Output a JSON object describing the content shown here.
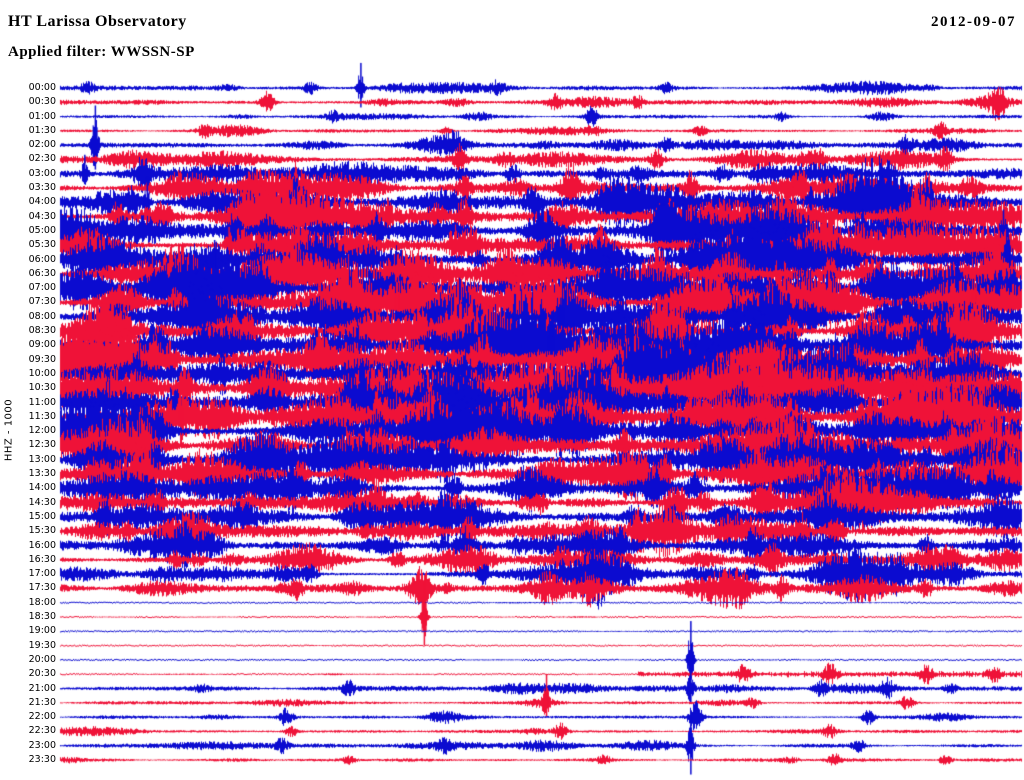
{
  "header": {
    "station_title": "HT Larissa Observatory",
    "date": "2012-09-07",
    "filter_label": "Applied filter: WWSSN-SP"
  },
  "y_axis": {
    "label": "HHZ - 1000"
  },
  "colors": {
    "background": "#ffffff",
    "text": "#000000",
    "trace_blue": "#0b0bd0",
    "trace_red": "#ef1238"
  },
  "chart_data": {
    "type": "line",
    "subtype": "helicorder-seismogram",
    "station": "HT Larissa Observatory",
    "date": "2012-09-07",
    "filter": "WWSSN-SP",
    "channel_scale": "HHZ - 1000",
    "row_interval_minutes": 30,
    "x_axis": "time within each 30-minute segment (no tick labels shown)",
    "y_axis": "segment start time, 00:00 to 23:30, alternating blue/red traces",
    "rows": [
      {
        "label": "00:00",
        "color": "blue",
        "amp": 1.8,
        "activity": 0.25,
        "events": [
          [
            0.312,
            26
          ],
          [
            0.26,
            6
          ],
          [
            0.455,
            7
          ],
          [
            0.63,
            5
          ]
        ]
      },
      {
        "label": "00:30",
        "color": "red",
        "amp": 1.8,
        "activity": 0.25,
        "events": [
          [
            0.215,
            12
          ],
          [
            0.515,
            8
          ],
          [
            0.6,
            6
          ],
          [
            0.975,
            10
          ]
        ]
      },
      {
        "label": "01:00",
        "color": "blue",
        "amp": 1.4,
        "activity": 0.2,
        "events": [
          [
            0.285,
            5
          ],
          [
            0.552,
            10
          ],
          [
            0.75,
            4
          ]
        ]
      },
      {
        "label": "01:30",
        "color": "red",
        "amp": 1.4,
        "activity": 0.2,
        "events": [
          [
            0.15,
            5
          ],
          [
            0.4,
            4
          ],
          [
            0.665,
            6
          ],
          [
            0.915,
            7
          ]
        ]
      },
      {
        "label": "02:00",
        "color": "blue",
        "amp": 2.2,
        "activity": 0.35,
        "events": [
          [
            0.036,
            52
          ],
          [
            0.41,
            9
          ],
          [
            0.63,
            7
          ],
          [
            0.88,
            8
          ]
        ]
      },
      {
        "label": "02:30",
        "color": "red",
        "amp": 2.5,
        "activity": 0.4,
        "events": [
          [
            0.415,
            15
          ],
          [
            0.62,
            9
          ],
          [
            0.79,
            8
          ],
          [
            0.92,
            11
          ]
        ]
      },
      {
        "label": "03:00",
        "color": "blue",
        "amp": 2.8,
        "activity": 0.45,
        "events": [
          [
            0.025,
            20
          ],
          [
            0.085,
            17
          ],
          [
            0.47,
            9
          ],
          [
            0.86,
            11
          ]
        ]
      },
      {
        "label": "03:30",
        "color": "red",
        "amp": 3.5,
        "activity": 0.55,
        "events": [
          [
            0.245,
            16
          ],
          [
            0.42,
            10
          ],
          [
            0.53,
            13
          ],
          [
            0.655,
            15
          ],
          [
            0.77,
            12
          ],
          [
            0.9,
            15
          ]
        ]
      },
      {
        "label": "04:00",
        "color": "blue",
        "amp": 4.5,
        "activity": 0.6,
        "events": [
          [
            0.075,
            14
          ],
          [
            0.09,
            26
          ],
          [
            0.245,
            15
          ],
          [
            0.49,
            12
          ],
          [
            0.78,
            19
          ],
          [
            0.9,
            16
          ]
        ]
      },
      {
        "label": "04:30",
        "color": "red",
        "amp": 5,
        "activity": 0.65,
        "events": [
          [
            0.06,
            16
          ],
          [
            0.34,
            19
          ],
          [
            0.42,
            16
          ],
          [
            0.63,
            12
          ],
          [
            0.89,
            15
          ]
        ]
      },
      {
        "label": "05:00",
        "color": "blue",
        "amp": 5,
        "activity": 0.65,
        "events": [
          [
            0.18,
            15
          ],
          [
            0.33,
            17
          ],
          [
            0.5,
            12
          ],
          [
            0.64,
            13
          ],
          [
            0.98,
            21
          ]
        ]
      },
      {
        "label": "05:30",
        "color": "red",
        "amp": 5,
        "activity": 0.65,
        "events": [
          [
            0.175,
            19
          ],
          [
            0.41,
            15
          ],
          [
            0.56,
            13
          ],
          [
            0.7,
            12
          ],
          [
            0.83,
            13
          ]
        ]
      },
      {
        "label": "06:00",
        "color": "blue",
        "amp": 5.5,
        "activity": 0.7,
        "events": [
          [
            0.16,
            21
          ],
          [
            0.35,
            15
          ],
          [
            0.52,
            12
          ],
          [
            0.75,
            13
          ],
          [
            0.985,
            40
          ]
        ]
      },
      {
        "label": "06:30",
        "color": "red",
        "amp": 5.5,
        "activity": 0.7,
        "events": [
          [
            0.24,
            17
          ],
          [
            0.465,
            15
          ],
          [
            0.62,
            13
          ],
          [
            0.8,
            12
          ],
          [
            0.97,
            15
          ]
        ]
      },
      {
        "label": "07:00",
        "color": "blue",
        "amp": 6,
        "activity": 0.75,
        "events": [
          [
            0.21,
            17
          ],
          [
            0.3,
            19
          ],
          [
            0.565,
            15
          ],
          [
            0.8,
            17
          ],
          [
            0.93,
            13
          ]
        ]
      },
      {
        "label": "07:30",
        "color": "red",
        "amp": 6,
        "activity": 0.75,
        "events": [
          [
            0.12,
            13
          ],
          [
            0.35,
            19
          ],
          [
            0.47,
            15
          ],
          [
            0.745,
            13
          ],
          [
            0.95,
            19
          ]
        ]
      },
      {
        "label": "08:00",
        "color": "blue",
        "amp": 6,
        "activity": 0.75,
        "events": [
          [
            0.14,
            15
          ],
          [
            0.42,
            17
          ],
          [
            0.52,
            19
          ],
          [
            0.7,
            15
          ],
          [
            0.86,
            13
          ]
        ]
      },
      {
        "label": "08:30",
        "color": "red",
        "amp": 6,
        "activity": 0.75,
        "events": [
          [
            0.18,
            15
          ],
          [
            0.41,
            17
          ],
          [
            0.62,
            13
          ],
          [
            0.76,
            12
          ],
          [
            0.88,
            13
          ]
        ]
      },
      {
        "label": "09:00",
        "color": "blue",
        "amp": 6,
        "activity": 0.75,
        "events": [
          [
            0.1,
            17
          ],
          [
            0.27,
            13
          ],
          [
            0.51,
            19
          ],
          [
            0.76,
            13
          ],
          [
            0.92,
            12
          ]
        ]
      },
      {
        "label": "09:30",
        "color": "red",
        "amp": 6,
        "activity": 0.75,
        "events": [
          [
            0.099,
            17
          ],
          [
            0.115,
            15
          ],
          [
            0.44,
            17
          ],
          [
            0.64,
            13
          ],
          [
            0.93,
            13
          ]
        ]
      },
      {
        "label": "10:00",
        "color": "blue",
        "amp": 6,
        "activity": 0.75,
        "events": [
          [
            0.08,
            15
          ],
          [
            0.42,
            21
          ],
          [
            0.6,
            17
          ],
          [
            0.82,
            13
          ],
          [
            0.95,
            12
          ]
        ]
      },
      {
        "label": "10:30",
        "color": "red",
        "amp": 6,
        "activity": 0.75,
        "events": [
          [
            0.13,
            17
          ],
          [
            0.37,
            15
          ],
          [
            0.58,
            17
          ],
          [
            0.74,
            13
          ],
          [
            0.9,
            12
          ]
        ]
      },
      {
        "label": "11:00",
        "color": "blue",
        "amp": 6,
        "activity": 0.75,
        "events": [
          [
            0.12,
            17
          ],
          [
            0.34,
            15
          ],
          [
            0.63,
            19
          ],
          [
            0.71,
            17
          ],
          [
            0.88,
            13
          ]
        ]
      },
      {
        "label": "11:30",
        "color": "red",
        "amp": 6,
        "activity": 0.75,
        "events": [
          [
            0.125,
            21
          ],
          [
            0.33,
            17
          ],
          [
            0.49,
            15
          ],
          [
            0.76,
            13
          ],
          [
            0.92,
            12
          ]
        ]
      },
      {
        "label": "12:00",
        "color": "blue",
        "amp": 6,
        "activity": 0.7,
        "events": [
          [
            0.1,
            13
          ],
          [
            0.33,
            17
          ],
          [
            0.52,
            15
          ],
          [
            0.72,
            12
          ],
          [
            0.92,
            15
          ]
        ]
      },
      {
        "label": "12:30",
        "color": "red",
        "amp": 5.5,
        "activity": 0.65,
        "events": [
          [
            0.09,
            15
          ],
          [
            0.3,
            13
          ],
          [
            0.585,
            13
          ],
          [
            0.78,
            11
          ],
          [
            0.93,
            13
          ]
        ]
      },
      {
        "label": "13:00",
        "color": "blue",
        "amp": 5.5,
        "activity": 0.65,
        "events": [
          [
            0.045,
            19
          ],
          [
            0.1,
            17
          ],
          [
            0.4,
            12
          ],
          [
            0.67,
            13
          ],
          [
            0.9,
            11
          ]
        ]
      },
      {
        "label": "13:30",
        "color": "red",
        "amp": 5,
        "activity": 0.6,
        "events": [
          [
            0.078,
            17
          ],
          [
            0.09,
            16
          ],
          [
            0.25,
            12
          ],
          [
            0.63,
            15
          ],
          [
            0.85,
            11
          ]
        ]
      },
      {
        "label": "14:00",
        "color": "blue",
        "amp": 5,
        "activity": 0.6,
        "events": [
          [
            0.24,
            15
          ],
          [
            0.41,
            13
          ],
          [
            0.66,
            13
          ],
          [
            0.82,
            11
          ],
          [
            0.97,
            13
          ]
        ]
      },
      {
        "label": "14:30",
        "color": "red",
        "amp": 4.5,
        "activity": 0.55,
        "events": [
          [
            0.1,
            11
          ],
          [
            0.33,
            10
          ],
          [
            0.5,
            11
          ],
          [
            0.67,
            10
          ],
          [
            0.8,
            11
          ]
        ]
      },
      {
        "label": "15:00",
        "color": "blue",
        "amp": 4,
        "activity": 0.5,
        "events": [
          [
            0.045,
            15
          ],
          [
            0.4,
            17
          ],
          [
            0.635,
            11
          ],
          [
            0.8,
            10
          ]
        ]
      },
      {
        "label": "15:30",
        "color": "red",
        "amp": 4.5,
        "activity": 0.55,
        "events": [
          [
            0.15,
            13
          ],
          [
            0.425,
            13
          ],
          [
            0.6,
            11
          ],
          [
            0.77,
            15
          ]
        ]
      },
      {
        "label": "16:00",
        "color": "blue",
        "amp": 3.5,
        "activity": 0.55,
        "events": [
          [
            0.13,
            11
          ],
          [
            0.42,
            13
          ],
          [
            0.58,
            10
          ],
          [
            0.72,
            11
          ],
          [
            0.9,
            10
          ]
        ]
      },
      {
        "label": "16:30",
        "color": "red",
        "amp": 2.8,
        "activity": 0.6,
        "events": [
          [
            0.12,
            9
          ],
          [
            0.35,
            8
          ],
          [
            0.52,
            9
          ],
          [
            0.74,
            11
          ],
          [
            0.9,
            8
          ]
        ]
      },
      {
        "label": "17:00",
        "color": "blue",
        "amp": 2.8,
        "activity": 0.6,
        "events": [
          [
            0.26,
            9
          ],
          [
            0.44,
            8
          ],
          [
            0.56,
            9
          ],
          [
            0.72,
            8
          ],
          [
            0.87,
            9
          ]
        ]
      },
      {
        "label": "17:30",
        "color": "red",
        "amp": 2.8,
        "activity": 0.6,
        "events": [
          [
            0.375,
            15
          ],
          [
            0.55,
            8
          ],
          [
            0.75,
            11
          ],
          [
            0.9,
            8
          ]
        ]
      },
      {
        "label": "18:00",
        "color": "blue",
        "amp": 0.4,
        "activity": 0.02,
        "events": []
      },
      {
        "label": "18:30",
        "color": "red",
        "amp": 0.4,
        "activity": 0.02,
        "events": [
          [
            0.378,
            48
          ]
        ]
      },
      {
        "label": "19:00",
        "color": "blue",
        "amp": 0.4,
        "activity": 0.01,
        "events": []
      },
      {
        "label": "19:30",
        "color": "red",
        "amp": 0.4,
        "activity": 0.01,
        "events": []
      },
      {
        "label": "20:00",
        "color": "blue",
        "amp": 0.4,
        "activity": 0.02,
        "events": [
          [
            0.655,
            44
          ]
        ]
      },
      {
        "label": "20:30",
        "color": "red",
        "amp": 0.5,
        "activity": 0.05,
        "segment": [
          0.6,
          1.0,
          2.0
        ],
        "events": [
          [
            0.71,
            9
          ],
          [
            0.8,
            11
          ],
          [
            0.9,
            9
          ],
          [
            0.97,
            9
          ]
        ]
      },
      {
        "label": "21:00",
        "color": "blue",
        "amp": 1.8,
        "activity": 0.3,
        "events": [
          [
            0.3,
            7
          ],
          [
            0.655,
            26
          ],
          [
            0.79,
            7
          ],
          [
            0.86,
            9
          ]
        ]
      },
      {
        "label": "21:30",
        "color": "red",
        "amp": 1.2,
        "activity": 0.15,
        "events": [
          [
            0.505,
            28
          ],
          [
            0.72,
            5
          ],
          [
            0.88,
            7
          ]
        ]
      },
      {
        "label": "22:00",
        "color": "blue",
        "amp": 1.2,
        "activity": 0.15,
        "events": [
          [
            0.235,
            9
          ],
          [
            0.66,
            16
          ],
          [
            0.84,
            7
          ]
        ]
      },
      {
        "label": "22:30",
        "color": "red",
        "amp": 1.2,
        "activity": 0.15,
        "events": [
          [
            0.24,
            5
          ],
          [
            0.52,
            9
          ],
          [
            0.8,
            6
          ]
        ]
      },
      {
        "label": "23:00",
        "color": "blue",
        "amp": 1.5,
        "activity": 0.2,
        "events": [
          [
            0.23,
            7
          ],
          [
            0.4,
            6
          ],
          [
            0.655,
            34
          ],
          [
            0.83,
            6
          ]
        ]
      },
      {
        "label": "23:30",
        "color": "red",
        "amp": 1.2,
        "activity": 0.12,
        "events": [
          [
            0.3,
            4
          ],
          [
            0.565,
            5
          ],
          [
            0.805,
            6
          ],
          [
            0.92,
            5
          ]
        ]
      }
    ]
  }
}
